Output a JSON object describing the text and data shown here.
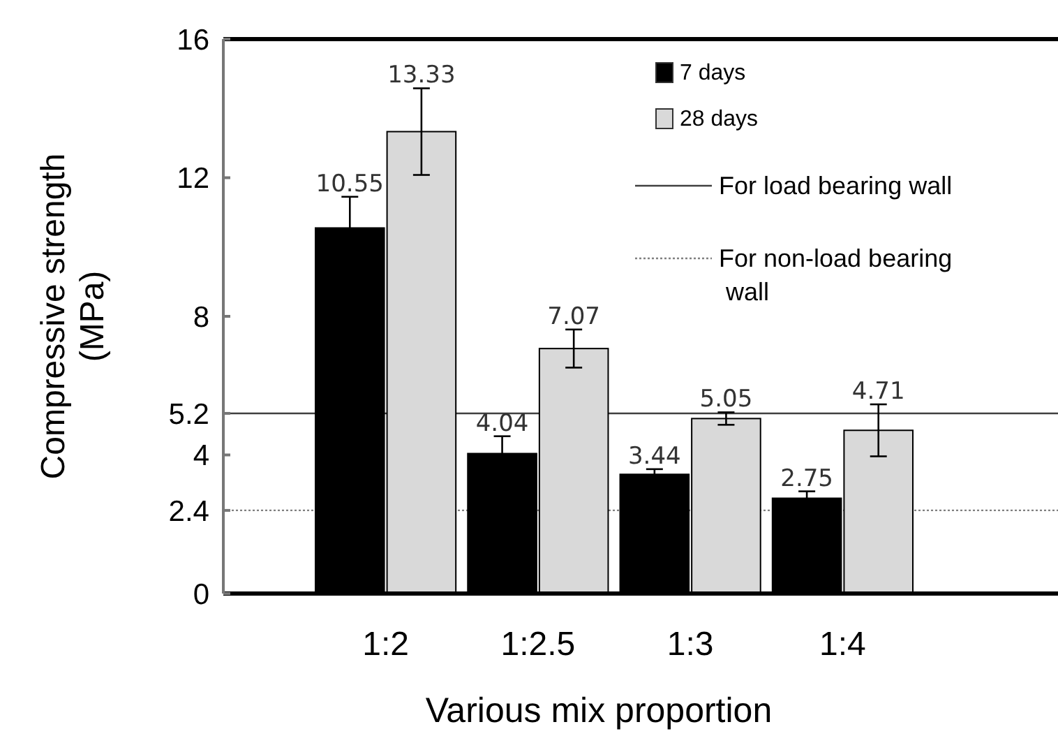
{
  "chart_data": {
    "type": "bar",
    "xlabel": "Various mix proportion",
    "ylabel": "Compressive strength (MPa)",
    "categories": [
      "1:2",
      "1:2.5",
      "1:3",
      "1:4"
    ],
    "series": [
      {
        "name": "7 days",
        "color": "#000000",
        "values": [
          10.55,
          4.04,
          3.44,
          2.75
        ],
        "errors": [
          0.9,
          0.5,
          0.15,
          0.2
        ]
      },
      {
        "name": "28 days",
        "color": "#d9d9d9",
        "values": [
          13.33,
          7.07,
          5.05,
          4.71
        ],
        "errors": [
          1.25,
          0.55,
          0.18,
          0.75
        ]
      }
    ],
    "ylim": [
      0,
      16
    ],
    "yticks": [
      0,
      2.4,
      4,
      5.2,
      8,
      12,
      16
    ],
    "data_labels": true,
    "grid": false,
    "legend": "top right",
    "ref_lines": [
      {
        "axis": "y",
        "value": 5.2,
        "label": "For load bearing wall",
        "color": "#404040",
        "line_style": "solid"
      },
      {
        "axis": "y",
        "value": 2.4,
        "label": "For non-load bearing wall",
        "color": "#808080",
        "line_style": "dotted"
      }
    ]
  }
}
